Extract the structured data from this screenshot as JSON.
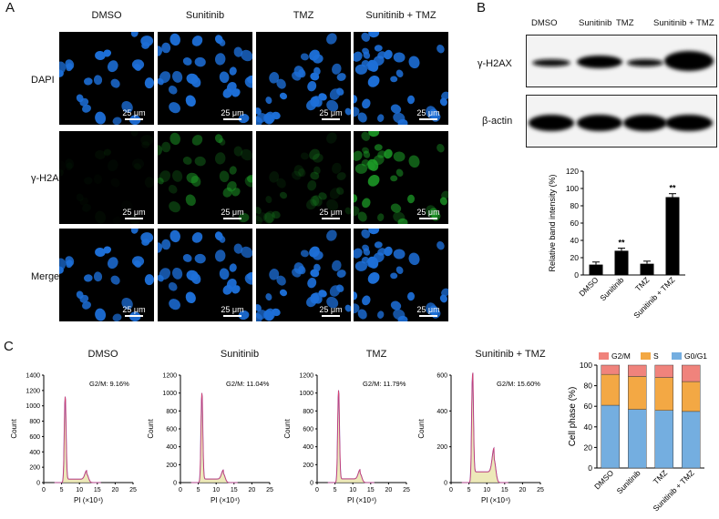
{
  "panel_a": {
    "letter": "A",
    "columns": [
      "DMSO",
      "Sunitinib",
      "TMZ",
      "Sunitinib + TMZ"
    ],
    "rows": [
      "DAPI",
      "γ-H2AX",
      "Merge"
    ],
    "scale_bar": "25 μm",
    "colors": {
      "dapi": "#1d6fd8",
      "h2ax": "#1fa82a"
    }
  },
  "panel_b": {
    "letter": "B",
    "lanes": [
      "DMSO",
      "Sunitinib",
      "TMZ",
      "Sunitinib + TMZ"
    ],
    "blots": [
      "γ-H2AX",
      "β-actin"
    ]
  },
  "panel_c": {
    "letter": "C",
    "histograms": [
      {
        "title": "DMSO",
        "g2m": "G2/M: 9.16%",
        "ymax": 1400,
        "yticks": [
          "0",
          "200",
          "400",
          "600",
          "800",
          "1000",
          "1200",
          "1400"
        ],
        "peak": 1120
      },
      {
        "title": "Sunitinib",
        "g2m": "G2/M: 11.04%",
        "ymax": 1200,
        "yticks": [
          "0",
          "200",
          "400",
          "600",
          "800",
          "1000",
          "1200"
        ],
        "peak": 1000
      },
      {
        "title": "TMZ",
        "g2m": "G2/M: 11.79%",
        "ymax": 1200,
        "yticks": [
          "0",
          "200",
          "400",
          "600",
          "800",
          "1000",
          "1200"
        ],
        "peak": 1030
      },
      {
        "title": "Sunitinib + TMZ",
        "g2m": "G2/M: 15.60%",
        "ymax": 600,
        "yticks": [
          "0",
          "200",
          "400",
          "600"
        ],
        "peak": 600
      }
    ],
    "hist_axes": {
      "ylabel": "Count",
      "xlabel": "PI (×10⁴)",
      "xticks": [
        "0",
        "5",
        "10",
        "15",
        "20",
        "25"
      ]
    }
  },
  "chart_data": [
    {
      "type": "bar",
      "categories": [
        "DMSO",
        "Sunitinib",
        "TMZ",
        "Sunitinib + TMZ"
      ],
      "values": [
        12,
        28,
        13,
        90
      ],
      "errors": [
        3,
        3,
        3,
        4
      ],
      "significance": [
        "",
        "**",
        "",
        "**"
      ],
      "xlabel": "",
      "ylabel": "Relative band intensity (%)",
      "ylim": [
        0,
        120
      ],
      "yticks": [
        "0",
        "20",
        "40",
        "60",
        "80",
        "100",
        "120"
      ],
      "bar_color": "#000000",
      "grid": false
    },
    {
      "type": "bar",
      "stacked": true,
      "categories": [
        "DMSO",
        "Sunitinib",
        "TMZ",
        "Sunitinib + TMZ"
      ],
      "series": [
        {
          "name": "G0/G1",
          "values": [
            61,
            57,
            56,
            55
          ],
          "color": "#74aee0"
        },
        {
          "name": "S",
          "values": [
            30,
            32,
            32,
            29
          ],
          "color": "#f3a844"
        },
        {
          "name": "G2/M",
          "values": [
            9,
            11,
            12,
            16
          ],
          "color": "#f0837c"
        }
      ],
      "legend_order": [
        "G2/M",
        "S",
        "G0/G1"
      ],
      "xlabel": "",
      "ylabel": "Cell phase (%)",
      "ylim": [
        0,
        100
      ],
      "yticks": [
        "0",
        "20",
        "40",
        "60",
        "80",
        "100"
      ],
      "legend_placement": "top",
      "grid": false
    }
  ]
}
